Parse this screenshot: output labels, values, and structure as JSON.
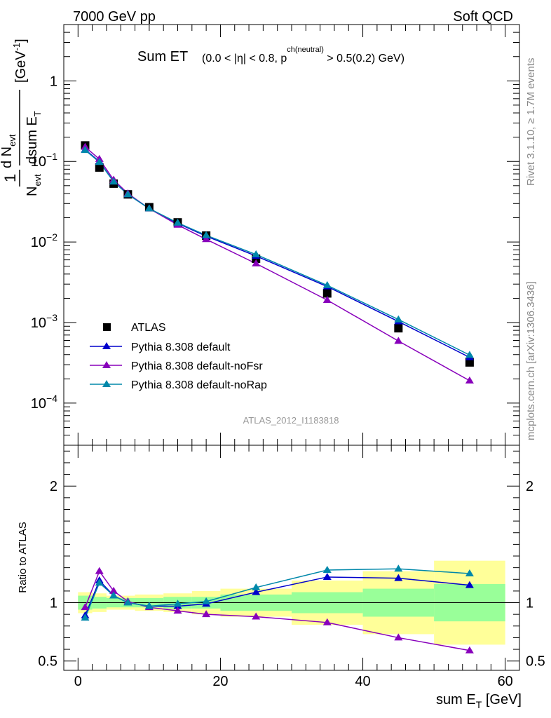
{
  "header": {
    "left": "7000 GeV pp",
    "right": "Soft QCD"
  },
  "side_labels": {
    "rivet": "Rivet 3.1.10, ≥ 1.7M events",
    "mcplots": "mcplots.cern.ch [arXiv:1306.3436]"
  },
  "chart_data": [
    {
      "type": "line",
      "panel": "main",
      "title": "Sum ET",
      "subtitle": "(0.0 < |η| < 0.8, p^ch(neutral) > 0.5(0.2) GeV)",
      "ylabel": "1/N_evt dN_evt/dsum E_T [GeV^-1]",
      "watermark": "ATLAS_2012_I1183818",
      "y_scale": "log",
      "xlim": [
        -2,
        62
      ],
      "ylim": [
        3e-05,
        5
      ],
      "y_ticks": [
        {
          "value": 1,
          "label": "1"
        },
        {
          "value": 0.1,
          "label": "10^-1"
        },
        {
          "value": 0.01,
          "label": "10^-2"
        },
        {
          "value": 0.001,
          "label": "10^-3"
        },
        {
          "value": 0.0001,
          "label": "10^-4"
        }
      ],
      "legend_position": "bottom-left",
      "series": [
        {
          "name": "ATLAS",
          "color": "#000000",
          "marker": "square",
          "x": [
            1,
            3,
            5,
            7,
            10,
            14,
            18,
            25,
            35,
            45,
            55
          ],
          "y": [
            0.158,
            0.084,
            0.053,
            0.039,
            0.027,
            0.0175,
            0.012,
            0.0062,
            0.0023,
            0.00085,
            0.00032
          ]
        },
        {
          "name": "Pythia 8.308 default",
          "color": "#0000cc",
          "marker": "triangle",
          "x": [
            1,
            3,
            5,
            7,
            10,
            14,
            18,
            25,
            35,
            45,
            55
          ],
          "y": [
            0.14,
            0.1,
            0.056,
            0.039,
            0.026,
            0.017,
            0.0118,
            0.0067,
            0.0028,
            0.00103,
            0.00037
          ]
        },
        {
          "name": "Pythia 8.308 default-noFsr",
          "color": "#8800bb",
          "marker": "triangle",
          "x": [
            1,
            3,
            5,
            7,
            10,
            14,
            18,
            25,
            35,
            45,
            55
          ],
          "y": [
            0.151,
            0.107,
            0.059,
            0.04,
            0.026,
            0.0163,
            0.0108,
            0.0054,
            0.0019,
            0.00059,
            0.00019
          ]
        },
        {
          "name": "Pythia 8.308 default-noRap",
          "color": "#0088aa",
          "marker": "triangle",
          "x": [
            1,
            3,
            5,
            7,
            10,
            14,
            18,
            25,
            35,
            45,
            55
          ],
          "y": [
            0.138,
            0.098,
            0.056,
            0.039,
            0.026,
            0.0173,
            0.0121,
            0.007,
            0.0029,
            0.00109,
            0.000395
          ]
        }
      ]
    },
    {
      "type": "line",
      "panel": "ratio",
      "ylabel": "Ratio to ATLAS",
      "xlabel": "sum E_T [GeV]",
      "xlim": [
        -2,
        62
      ],
      "ylim": [
        0.42,
        2.35
      ],
      "x_ticks": [
        0,
        20,
        40,
        60
      ],
      "y_ticks": [
        0.5,
        1,
        2
      ],
      "reference_line": 1,
      "bands": {
        "edges": [
          0,
          2,
          4,
          6,
          8,
          12,
          16,
          20,
          30,
          40,
          50,
          60
        ],
        "inner": [
          0.06,
          0.05,
          0.04,
          0.04,
          0.04,
          0.05,
          0.05,
          0.07,
          0.09,
          0.12,
          0.16
        ],
        "outer": [
          0.09,
          0.08,
          0.06,
          0.06,
          0.07,
          0.08,
          0.1,
          0.12,
          0.19,
          0.27,
          0.36
        ],
        "inner_color": "#99ff99",
        "outer_color": "#ffff99"
      },
      "series": [
        {
          "name": "Pythia 8.308 default",
          "color": "#0000cc",
          "x": [
            1,
            3,
            5,
            7,
            10,
            14,
            18,
            25,
            35,
            45,
            55
          ],
          "y": [
            0.89,
            1.19,
            1.06,
            1.0,
            0.97,
            0.97,
            0.99,
            1.09,
            1.22,
            1.21,
            1.15
          ]
        },
        {
          "name": "Pythia 8.308 default-noFsr",
          "color": "#8800bb",
          "x": [
            1,
            3,
            5,
            7,
            10,
            14,
            18,
            25,
            35,
            45,
            55
          ],
          "y": [
            0.96,
            1.27,
            1.1,
            1.01,
            0.96,
            0.93,
            0.9,
            0.88,
            0.83,
            0.7,
            0.59
          ]
        },
        {
          "name": "Pythia 8.308 default-noRap",
          "color": "#0088aa",
          "x": [
            1,
            3,
            5,
            7,
            10,
            14,
            18,
            25,
            35,
            45,
            55
          ],
          "y": [
            0.87,
            1.17,
            1.06,
            1.0,
            0.97,
            0.99,
            1.01,
            1.13,
            1.28,
            1.29,
            1.25
          ]
        }
      ]
    }
  ]
}
